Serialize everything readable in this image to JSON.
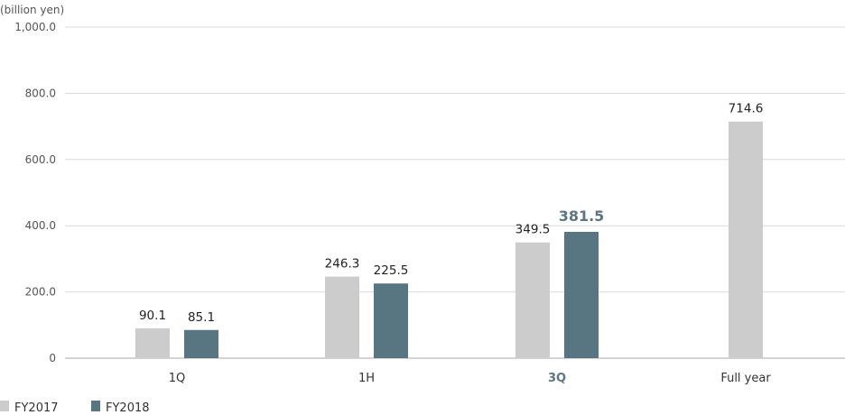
{
  "chart_data": {
    "type": "bar",
    "unit_label": "(billion yen)",
    "categories": [
      "1Q",
      "1H",
      "3Q",
      "Full year"
    ],
    "highlight_category": "3Q",
    "series": [
      {
        "name": "FY2017",
        "color": "#cccccc",
        "values": [
          90.1,
          246.3,
          349.5,
          714.6
        ],
        "labels": [
          "90.1",
          "246.3",
          "349.5",
          "714.6"
        ]
      },
      {
        "name": "FY2018",
        "color": "#587582",
        "values": [
          85.1,
          225.5,
          381.5,
          null
        ],
        "labels": [
          "85.1",
          "225.5",
          "381.5",
          ""
        ]
      }
    ],
    "yticks": [
      0,
      200,
      400,
      600,
      800,
      1000
    ],
    "ytick_labels": [
      "0",
      "200.0",
      "400.0",
      "600.0",
      "800.0",
      "1,000.0"
    ],
    "ylim": [
      0,
      1000
    ],
    "grid": true,
    "legend_position": "bottom-left",
    "highlight_color": "#5b7583"
  }
}
